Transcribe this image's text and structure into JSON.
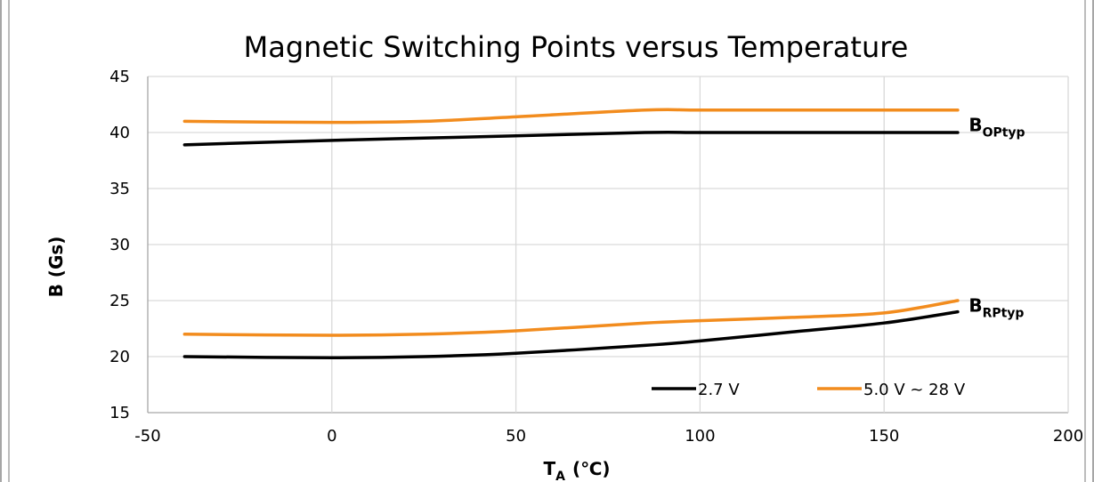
{
  "chart_data": {
    "type": "line",
    "title": "Magnetic Switching Points versus Temperature",
    "xlabel": {
      "main": "T",
      "sub": "A",
      "unit": "(℃)"
    },
    "ylabel": "B  (Gs)",
    "xlim": [
      -50,
      200
    ],
    "ylim": [
      15,
      45
    ],
    "xticks": [
      -50,
      0,
      50,
      100,
      150,
      200
    ],
    "yticks": [
      15,
      20,
      25,
      30,
      35,
      40,
      45
    ],
    "grid": true,
    "colors": {
      "v27": "#000000",
      "v50": "#f28c1e",
      "grid": "#d9d9d9",
      "frame": "#a6a6a6"
    },
    "legend": {
      "position": "bottom-right",
      "items": [
        {
          "key": "v27",
          "label": "2.7 V"
        },
        {
          "key": "v50",
          "label": "5.0 V ~ 28 V"
        }
      ]
    },
    "series": [
      {
        "key": "v27",
        "group": "BOP",
        "x": [
          -40,
          0,
          25,
          50,
          85,
          100,
          125,
          150,
          170
        ],
        "y": [
          38.9,
          39.3,
          39.5,
          39.7,
          40.0,
          40.0,
          40.0,
          40.0,
          40.0
        ]
      },
      {
        "key": "v50",
        "group": "BOP",
        "x": [
          -40,
          0,
          25,
          50,
          85,
          100,
          125,
          150,
          170
        ],
        "y": [
          41.0,
          40.9,
          41.0,
          41.4,
          42.0,
          42.0,
          42.0,
          42.0,
          42.0
        ]
      },
      {
        "key": "v27",
        "group": "BRP",
        "x": [
          -40,
          0,
          25,
          50,
          85,
          100,
          125,
          150,
          170
        ],
        "y": [
          20.0,
          19.9,
          20.0,
          20.3,
          21.0,
          21.4,
          22.2,
          23.0,
          24.0
        ]
      },
      {
        "key": "v50",
        "group": "BRP",
        "x": [
          -40,
          0,
          25,
          50,
          85,
          100,
          125,
          150,
          170
        ],
        "y": [
          22.0,
          21.9,
          22.0,
          22.3,
          23.0,
          23.2,
          23.5,
          23.9,
          25.0
        ]
      }
    ],
    "annotations": [
      {
        "main": "B",
        "sub": "OPtyp",
        "x": 173,
        "y": 40.6
      },
      {
        "main": "B",
        "sub": "RPtyp",
        "x": 173,
        "y": 24.5
      }
    ]
  }
}
